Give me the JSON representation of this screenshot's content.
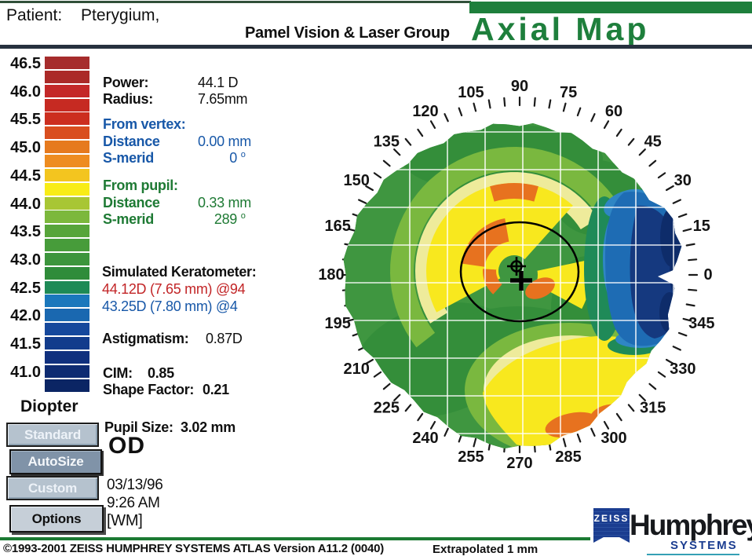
{
  "header": {
    "patient_label": "Patient:",
    "patient_name": "Pterygium,",
    "clinic": "Pamel Vision & Laser Group",
    "map_title": "Axial Map",
    "title_color": "#1e7f3c"
  },
  "scale": {
    "unit_label": "Diopter",
    "labels": [
      "46.5",
      "46.0",
      "45.5",
      "45.0",
      "44.5",
      "44.0",
      "43.5",
      "43.0",
      "42.5",
      "42.0",
      "41.5",
      "41.0"
    ],
    "block_colors": [
      "#a62c2c",
      "#ab2a28",
      "#c42828",
      "#c62a22",
      "#cc2e1f",
      "#d94e1f",
      "#e67a1e",
      "#ee8c20",
      "#f3c51f",
      "#f8ec17",
      "#a8c634",
      "#7cb83c",
      "#57a53a",
      "#479c3a",
      "#3c953c",
      "#2f8c3a",
      "#1e8a56",
      "#1b78bc",
      "#1a68b0",
      "#15489c",
      "#123c8c",
      "#10307e",
      "#0e2b72",
      "#0b2564"
    ]
  },
  "readout": {
    "power_label": "Power:",
    "power_value": "44.1 D",
    "radius_label": "Radius:",
    "radius_value": "7.65mm",
    "from_vertex_label": "From vertex:",
    "vertex_distance_label": "Distance",
    "vertex_distance_value": "0.00 mm",
    "vertex_smerid_label": "S-merid",
    "vertex_smerid_value": "0",
    "from_pupil_label": "From pupil:",
    "pupil_distance_label": "Distance",
    "pupil_distance_value": "0.33 mm",
    "pupil_smerid_label": "S-merid",
    "pupil_smerid_value": "289",
    "deg_sup": "o"
  },
  "keratometer": {
    "title": "Simulated Keratometer:",
    "k1": "44.12D (7.65 mm) @94",
    "k2": "43.25D (7.80 mm) @4",
    "astig_label": "Astigmatism:",
    "astig_value": "0.87D"
  },
  "stats": {
    "cim_label": "CIM:",
    "cim_value": "0.85",
    "shape_label": "Shape Factor:",
    "shape_value": "0.21",
    "pupil_size_label": "Pupil Size:",
    "pupil_size_value": "3.02 mm",
    "eye": "OD",
    "date": "03/13/96",
    "time": "9:26 AM",
    "operator": "[WM]"
  },
  "buttons": {
    "standard": "Standard",
    "autosize": "AutoSize",
    "custom": "Custom",
    "options": "Options"
  },
  "footer": {
    "copyright": "©1993-2001 ZEISS HUMPHREY SYSTEMS ATLAS  Version A11.2 (0040)",
    "extrapolated": "Extrapolated 1 mm",
    "logo_zeiss": "ZEISS",
    "logo_name": "Humphrey",
    "logo_sub": "SYSTEMS"
  },
  "map": {
    "degree_labels": [
      0,
      15,
      30,
      45,
      60,
      75,
      90,
      105,
      120,
      135,
      150,
      165,
      180,
      195,
      210,
      225,
      240,
      255,
      270,
      285,
      300,
      315,
      330,
      345
    ],
    "tick_step": 5,
    "grid_spacing_mm": 1,
    "palette": {
      "base_green": "#3f9640",
      "dark_green": "#348e3a",
      "light_green": "#7ab83f",
      "pale_yellow": "#eeeb9b",
      "yellow": "#f8e81e",
      "orange": "#e7721f",
      "teal": "#1f8a58",
      "light_blue": "#2f86c4",
      "blue": "#1e6cb4",
      "navy": "#15397f",
      "deep_navy": "#0e2c6a"
    }
  }
}
